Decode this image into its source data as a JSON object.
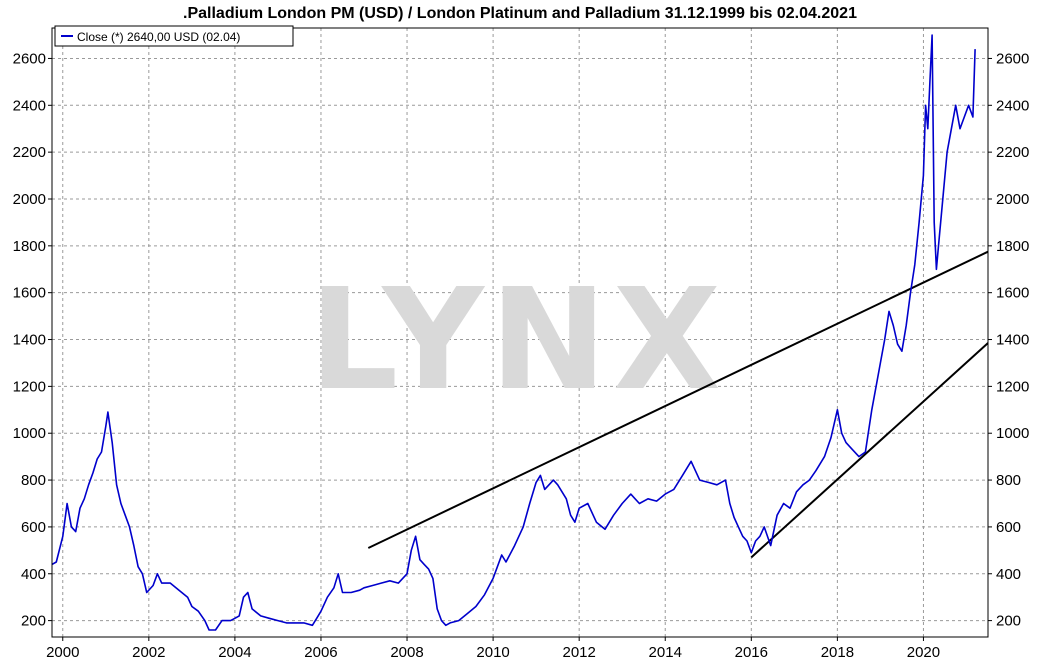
{
  "chart_data": {
    "type": "line",
    "title": ".Palladium London PM (USD) / London Platinum and Palladium 31.12.1999 bis 02.04.2021",
    "watermark": "LYNX",
    "legend": {
      "label": "Close (*) 2640,00 USD (02.04)",
      "placement": "top-left"
    },
    "xlim": [
      1999.75,
      2021.5
    ],
    "ylim": [
      130,
      2730
    ],
    "x_ticks": [
      2000,
      2002,
      2004,
      2006,
      2008,
      2010,
      2012,
      2014,
      2016,
      2018,
      2020
    ],
    "x_tick_labels": [
      "2000",
      "2002",
      "2004",
      "2006",
      "2008",
      "2010",
      "2012",
      "2014",
      "2016",
      "2018",
      "2020"
    ],
    "y_ticks": [
      200,
      400,
      600,
      800,
      1000,
      1200,
      1400,
      1600,
      1800,
      2000,
      2200,
      2400,
      2600
    ],
    "y_tick_labels": [
      "200",
      "400",
      "600",
      "800",
      "1000",
      "1200",
      "1400",
      "1600",
      "1800",
      "2000",
      "2200",
      "2400",
      "2600"
    ],
    "grid": true,
    "series": [
      {
        "name": "Close (*)",
        "color": "#0000cc",
        "points": [
          [
            1999.75,
            440
          ],
          [
            1999.85,
            450
          ],
          [
            2000.0,
            560
          ],
          [
            2000.1,
            700
          ],
          [
            2000.2,
            600
          ],
          [
            2000.3,
            580
          ],
          [
            2000.4,
            680
          ],
          [
            2000.5,
            720
          ],
          [
            2000.6,
            780
          ],
          [
            2000.7,
            830
          ],
          [
            2000.8,
            890
          ],
          [
            2000.9,
            920
          ],
          [
            2001.0,
            1030
          ],
          [
            2001.05,
            1090
          ],
          [
            2001.15,
            960
          ],
          [
            2001.25,
            780
          ],
          [
            2001.35,
            700
          ],
          [
            2001.45,
            650
          ],
          [
            2001.55,
            600
          ],
          [
            2001.65,
            520
          ],
          [
            2001.75,
            430
          ],
          [
            2001.85,
            400
          ],
          [
            2001.95,
            320
          ],
          [
            2002.1,
            350
          ],
          [
            2002.2,
            400
          ],
          [
            2002.3,
            360
          ],
          [
            2002.5,
            360
          ],
          [
            2002.7,
            330
          ],
          [
            2002.9,
            300
          ],
          [
            2003.0,
            260
          ],
          [
            2003.15,
            240
          ],
          [
            2003.3,
            200
          ],
          [
            2003.4,
            160
          ],
          [
            2003.55,
            160
          ],
          [
            2003.7,
            200
          ],
          [
            2003.9,
            200
          ],
          [
            2004.0,
            210
          ],
          [
            2004.1,
            220
          ],
          [
            2004.2,
            300
          ],
          [
            2004.3,
            320
          ],
          [
            2004.4,
            250
          ],
          [
            2004.6,
            220
          ],
          [
            2004.8,
            210
          ],
          [
            2005.0,
            200
          ],
          [
            2005.2,
            190
          ],
          [
            2005.4,
            190
          ],
          [
            2005.6,
            190
          ],
          [
            2005.8,
            180
          ],
          [
            2005.9,
            210
          ],
          [
            2006.0,
            240
          ],
          [
            2006.15,
            300
          ],
          [
            2006.3,
            340
          ],
          [
            2006.4,
            400
          ],
          [
            2006.5,
            320
          ],
          [
            2006.7,
            320
          ],
          [
            2006.9,
            330
          ],
          [
            2007.0,
            340
          ],
          [
            2007.2,
            350
          ],
          [
            2007.4,
            360
          ],
          [
            2007.6,
            370
          ],
          [
            2007.8,
            360
          ],
          [
            2007.9,
            380
          ],
          [
            2008.0,
            400
          ],
          [
            2008.1,
            500
          ],
          [
            2008.2,
            560
          ],
          [
            2008.3,
            460
          ],
          [
            2008.4,
            440
          ],
          [
            2008.5,
            420
          ],
          [
            2008.6,
            380
          ],
          [
            2008.7,
            250
          ],
          [
            2008.8,
            200
          ],
          [
            2008.9,
            180
          ],
          [
            2009.0,
            190
          ],
          [
            2009.2,
            200
          ],
          [
            2009.4,
            230
          ],
          [
            2009.6,
            260
          ],
          [
            2009.8,
            310
          ],
          [
            2010.0,
            380
          ],
          [
            2010.1,
            430
          ],
          [
            2010.2,
            480
          ],
          [
            2010.3,
            450
          ],
          [
            2010.5,
            520
          ],
          [
            2010.7,
            600
          ],
          [
            2010.85,
            700
          ],
          [
            2011.0,
            790
          ],
          [
            2011.1,
            820
          ],
          [
            2011.2,
            760
          ],
          [
            2011.4,
            800
          ],
          [
            2011.5,
            780
          ],
          [
            2011.7,
            720
          ],
          [
            2011.8,
            650
          ],
          [
            2011.9,
            620
          ],
          [
            2012.0,
            680
          ],
          [
            2012.2,
            700
          ],
          [
            2012.4,
            620
          ],
          [
            2012.6,
            590
          ],
          [
            2012.8,
            650
          ],
          [
            2013.0,
            700
          ],
          [
            2013.2,
            740
          ],
          [
            2013.4,
            700
          ],
          [
            2013.6,
            720
          ],
          [
            2013.8,
            710
          ],
          [
            2014.0,
            740
          ],
          [
            2014.2,
            760
          ],
          [
            2014.4,
            820
          ],
          [
            2014.6,
            880
          ],
          [
            2014.8,
            800
          ],
          [
            2015.0,
            790
          ],
          [
            2015.2,
            780
          ],
          [
            2015.4,
            800
          ],
          [
            2015.5,
            700
          ],
          [
            2015.6,
            640
          ],
          [
            2015.7,
            600
          ],
          [
            2015.8,
            560
          ],
          [
            2015.9,
            540
          ],
          [
            2016.0,
            490
          ],
          [
            2016.1,
            540
          ],
          [
            2016.2,
            560
          ],
          [
            2016.3,
            600
          ],
          [
            2016.45,
            520
          ],
          [
            2016.6,
            650
          ],
          [
            2016.75,
            700
          ],
          [
            2016.9,
            680
          ],
          [
            2017.05,
            750
          ],
          [
            2017.2,
            780
          ],
          [
            2017.35,
            800
          ],
          [
            2017.5,
            840
          ],
          [
            2017.7,
            900
          ],
          [
            2017.85,
            980
          ],
          [
            2018.0,
            1100
          ],
          [
            2018.1,
            1000
          ],
          [
            2018.2,
            960
          ],
          [
            2018.35,
            930
          ],
          [
            2018.5,
            900
          ],
          [
            2018.65,
            920
          ],
          [
            2018.8,
            1100
          ],
          [
            2018.9,
            1200
          ],
          [
            2019.0,
            1300
          ],
          [
            2019.1,
            1400
          ],
          [
            2019.2,
            1520
          ],
          [
            2019.3,
            1460
          ],
          [
            2019.4,
            1380
          ],
          [
            2019.5,
            1350
          ],
          [
            2019.6,
            1460
          ],
          [
            2019.7,
            1600
          ],
          [
            2019.8,
            1720
          ],
          [
            2019.9,
            1900
          ],
          [
            2020.0,
            2100
          ],
          [
            2020.05,
            2400
          ],
          [
            2020.1,
            2300
          ],
          [
            2020.15,
            2500
          ],
          [
            2020.2,
            2700
          ],
          [
            2020.25,
            1900
          ],
          [
            2020.3,
            1700
          ],
          [
            2020.35,
            1800
          ],
          [
            2020.45,
            2000
          ],
          [
            2020.55,
            2200
          ],
          [
            2020.65,
            2300
          ],
          [
            2020.75,
            2400
          ],
          [
            2020.85,
            2300
          ],
          [
            2020.95,
            2350
          ],
          [
            2021.05,
            2400
          ],
          [
            2021.15,
            2350
          ],
          [
            2021.2,
            2640
          ]
        ]
      }
    ],
    "annotations": [
      {
        "type": "trendline",
        "color": "#000000",
        "from": [
          2007.1,
          510
        ],
        "to": [
          2021.5,
          1775
        ]
      },
      {
        "type": "trendline",
        "color": "#000000",
        "from": [
          2016.0,
          470
        ],
        "to": [
          2021.5,
          1385
        ]
      }
    ]
  }
}
